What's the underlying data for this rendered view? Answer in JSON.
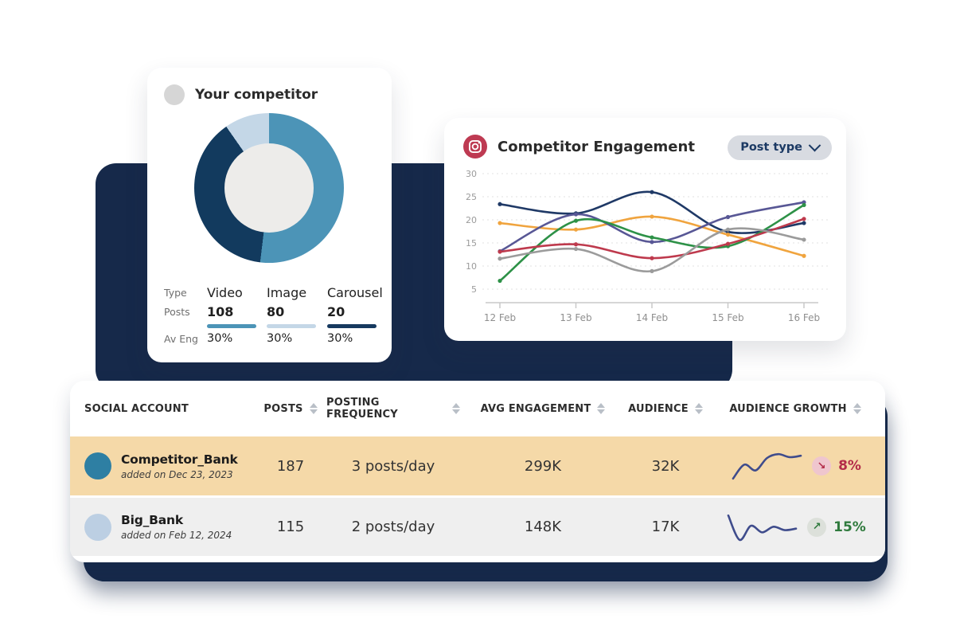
{
  "competitor_card": {
    "title": "Your competitor",
    "avatar_color": "#D6D6D6",
    "donut": {
      "hole_color": "#EDECEA",
      "segments": [
        {
          "label": "Video",
          "percent": 51.9,
          "color": "#4C94B7"
        },
        {
          "label": "Image",
          "percent": 38.4,
          "color": "#123A5E"
        },
        {
          "label": "Carousel",
          "percent": 9.7,
          "color": "#C4D7E7"
        }
      ]
    },
    "stats": {
      "row_labels": [
        "Type",
        "Posts",
        "Av Eng"
      ],
      "columns": [
        {
          "type": "Video",
          "posts": "108",
          "avg_eng": "30%",
          "color": "#4C94B7"
        },
        {
          "type": "Image",
          "posts": "80",
          "avg_eng": "30%",
          "color": "#C4D7E7"
        },
        {
          "type": "Carousel",
          "posts": "20",
          "avg_eng": "30%",
          "color": "#16395F"
        }
      ]
    }
  },
  "engagement_card": {
    "icon": "instagram-icon",
    "icon_color": "#BE3A52",
    "title": "Competitor Engagement",
    "dropdown_label": "Post type"
  },
  "chart_data": {
    "type": "line",
    "title": "Competitor Engagement",
    "x_labels": [
      "12 Feb",
      "13 Feb",
      "14 Feb",
      "15 Feb",
      "16 Feb"
    ],
    "y_ticks": [
      5,
      10,
      15,
      20,
      25,
      30
    ],
    "ylim": [
      4,
      31
    ],
    "grid": "horizontal-dashed",
    "legend": "none",
    "series": [
      {
        "name": "navy",
        "color": "#1F3966",
        "values": [
          23.4,
          21.4,
          26.0,
          17.4,
          19.3
        ]
      },
      {
        "name": "orange",
        "color": "#F0A43E",
        "values": [
          19.3,
          17.9,
          20.7,
          16.8,
          12.2
        ]
      },
      {
        "name": "purple",
        "color": "#585795",
        "values": [
          13.2,
          21.2,
          15.2,
          20.6,
          23.8
        ]
      },
      {
        "name": "green",
        "color": "#2D9147",
        "values": [
          6.8,
          19.8,
          16.2,
          14.3,
          23.2
        ]
      },
      {
        "name": "red",
        "color": "#BE3A4D",
        "values": [
          13.1,
          14.7,
          11.7,
          14.8,
          20.2
        ]
      },
      {
        "name": "gray",
        "color": "#9B9B9B",
        "values": [
          11.6,
          13.7,
          8.9,
          17.9,
          15.7
        ]
      }
    ]
  },
  "table": {
    "columns": [
      {
        "label": "SOCIAL ACCOUNT",
        "sortable": false
      },
      {
        "label": "POSTS",
        "sortable": true
      },
      {
        "label": "POSTING FREQUENCY",
        "sortable": true
      },
      {
        "label": "AVG ENGAGEMENT",
        "sortable": true
      },
      {
        "label": "AUDIENCE",
        "sortable": true
      },
      {
        "label": "AUDIENCE GROWTH",
        "sortable": true
      }
    ],
    "rows": [
      {
        "name": "Competitor_Bank",
        "added": "added on Dec 23, 2023",
        "avatar_color": "#2E7FA3",
        "posts": "187",
        "frequency": "3 posts/day",
        "avg_engagement": "299K",
        "audience": "32K",
        "growth": "8%",
        "growth_direction": "down",
        "arrow_glyph": "↘",
        "growth_color": "#B32C49",
        "badge_bg": "#EFC6CE",
        "row_bg": "#F5D9A8",
        "spark_color": "#3F4C8C",
        "spark": [
          2,
          8,
          5.5,
          10.8,
          12.5,
          11.2,
          11.8
        ]
      },
      {
        "name": "Big_Bank",
        "added": "added on Feb 12, 2024",
        "avatar_color": "#BCCFE3",
        "posts": "115",
        "frequency": "2 posts/day",
        "avg_engagement": "148K",
        "audience": "17K",
        "growth": "15%",
        "growth_direction": "up",
        "arrow_glyph": "↗",
        "growth_color": "#2F7A3D",
        "badge_bg": "#DCE0DA",
        "row_bg": "#EFEFEF",
        "spark_color": "#3F4C8C",
        "spark": [
          14,
          1,
          8.5,
          5,
          8,
          6.2,
          7
        ]
      }
    ]
  }
}
